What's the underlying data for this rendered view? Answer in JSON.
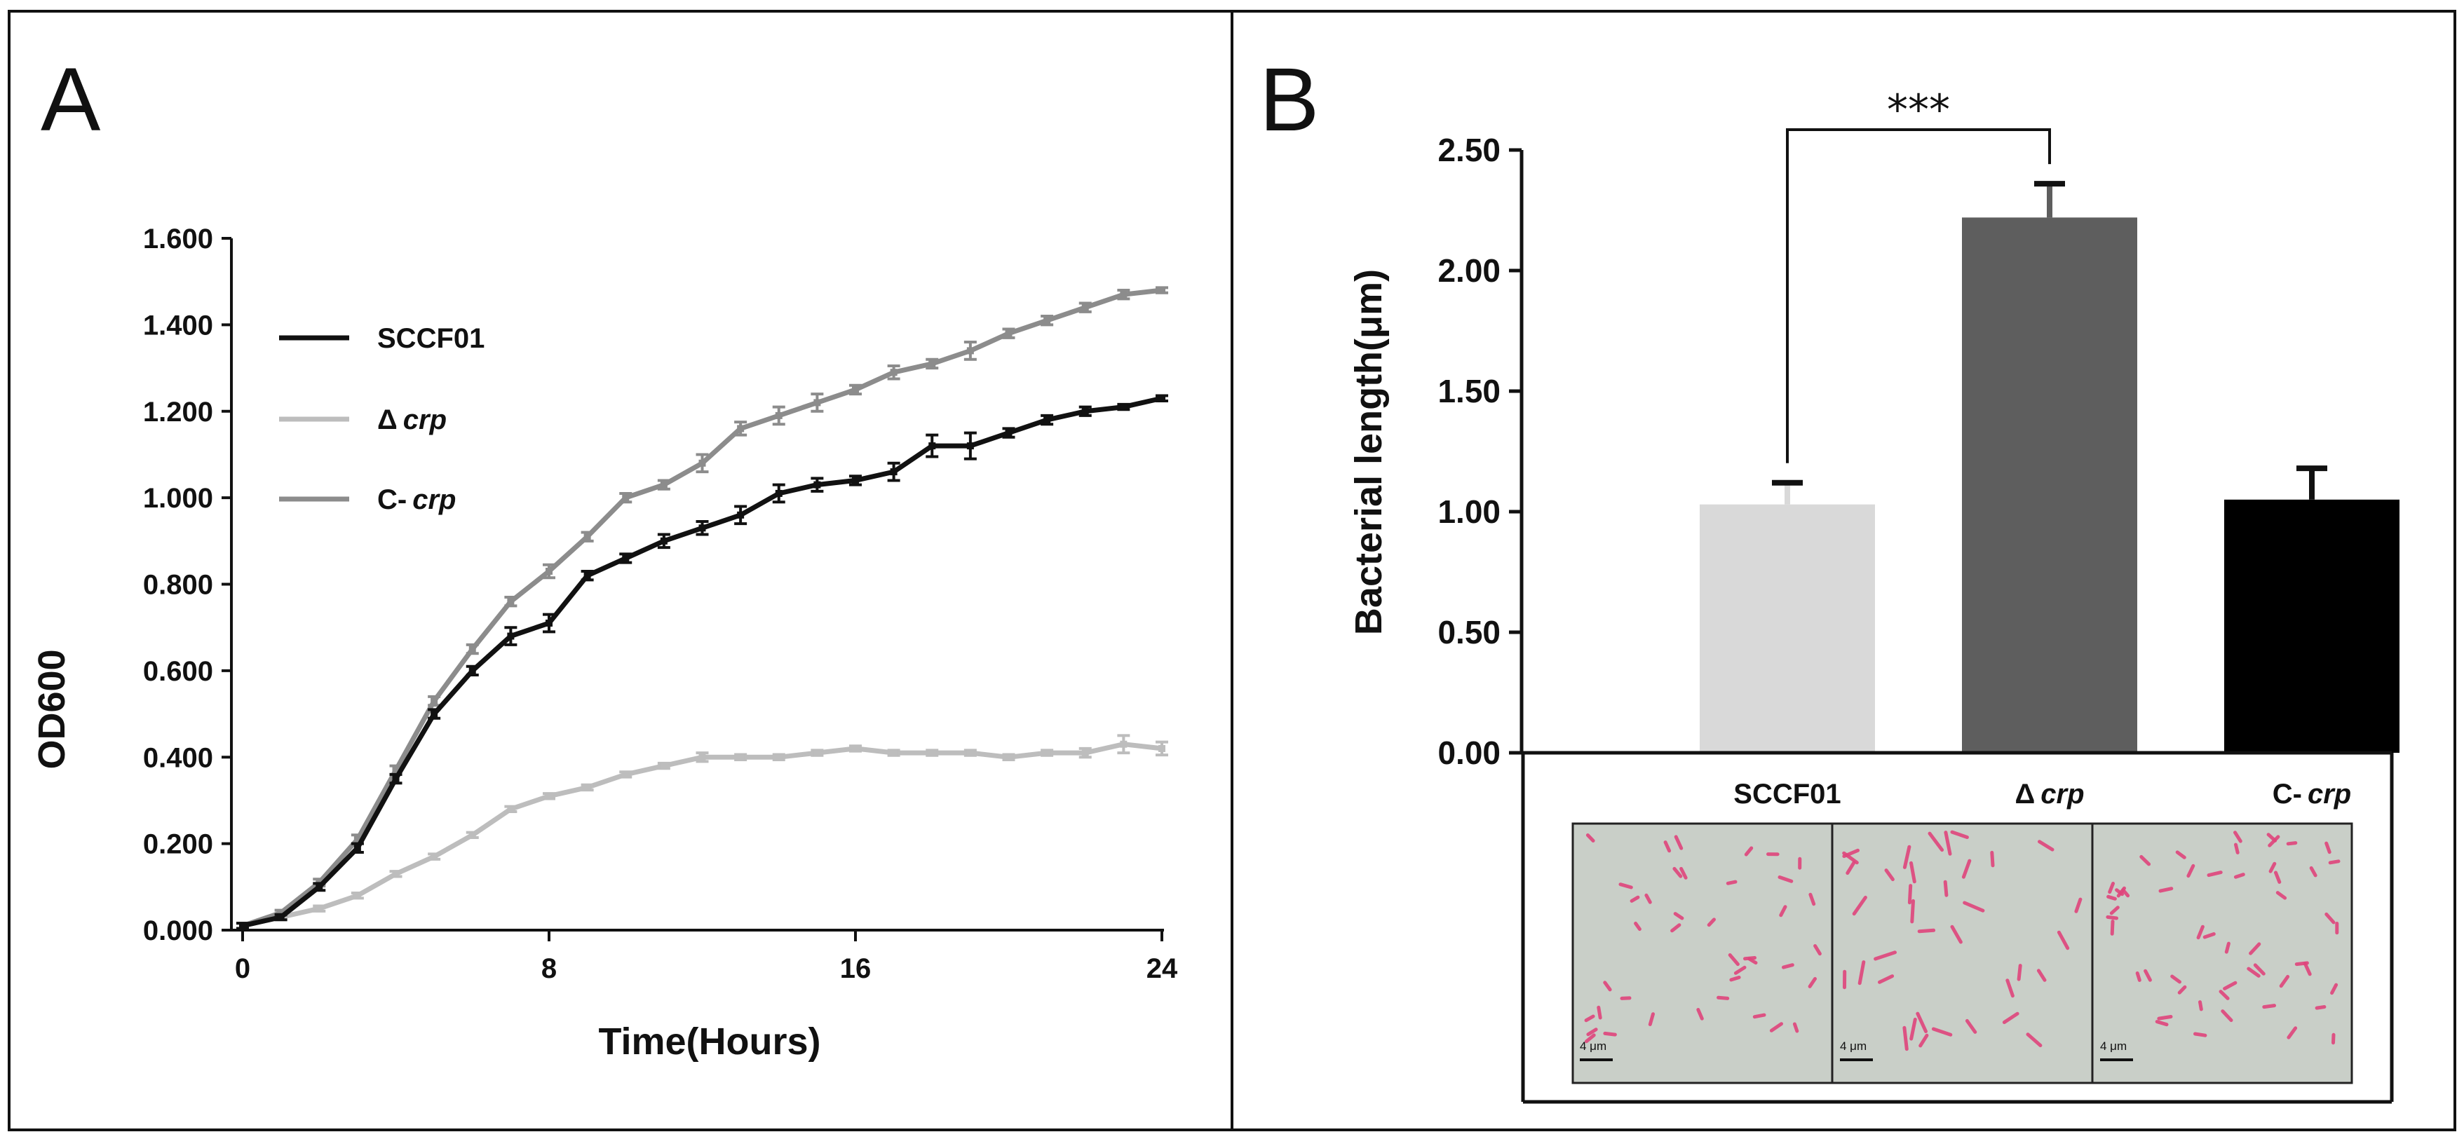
{
  "chart_data": [
    {
      "panel": "A",
      "type": "line",
      "xlabel": "Time(Hours)",
      "ylabel": "OD600",
      "xlim": [
        0,
        24
      ],
      "ylim": [
        0,
        1.6
      ],
      "xticks": [
        "0",
        "8",
        "16",
        "24"
      ],
      "yticks": [
        "0.000",
        "0.200",
        "0.400",
        "0.600",
        "0.800",
        "1.000",
        "1.200",
        "1.400",
        "1.600"
      ],
      "legend": [
        {
          "prefix": "SCCF01",
          "italic": ""
        },
        {
          "prefix": "Δ",
          "italic": "crp"
        },
        {
          "prefix": "C-",
          "italic": "crp"
        }
      ],
      "x": [
        0,
        1,
        2,
        3,
        4,
        5,
        6,
        7,
        8,
        9,
        10,
        11,
        12,
        13,
        14,
        15,
        16,
        17,
        18,
        19,
        20,
        21,
        22,
        23,
        24
      ],
      "series": [
        {
          "name": "SCCF01",
          "color": "#111111",
          "values": [
            0.01,
            0.03,
            0.1,
            0.19,
            0.35,
            0.5,
            0.6,
            0.68,
            0.71,
            0.82,
            0.86,
            0.9,
            0.93,
            0.96,
            1.01,
            1.03,
            1.04,
            1.06,
            1.12,
            1.12,
            1.15,
            1.18,
            1.2,
            1.21,
            1.23
          ],
          "errors": [
            0,
            0.005,
            0.008,
            0.01,
            0.01,
            0.01,
            0.01,
            0.02,
            0.02,
            0.01,
            0.01,
            0.015,
            0.015,
            0.02,
            0.02,
            0.015,
            0.01,
            0.02,
            0.025,
            0.03,
            0.01,
            0.01,
            0.01,
            0.005,
            0.005
          ]
        },
        {
          "name": "Δcrp",
          "color": "#bdbdbd",
          "values": [
            0.01,
            0.03,
            0.05,
            0.08,
            0.13,
            0.17,
            0.22,
            0.28,
            0.31,
            0.33,
            0.36,
            0.38,
            0.4,
            0.4,
            0.4,
            0.41,
            0.42,
            0.41,
            0.41,
            0.41,
            0.4,
            0.41,
            0.41,
            0.43,
            0.42
          ],
          "errors": [
            0,
            0.003,
            0.003,
            0.005,
            0.005,
            0.005,
            0.005,
            0.005,
            0.005,
            0.005,
            0.005,
            0.005,
            0.01,
            0.005,
            0.005,
            0.005,
            0.005,
            0.005,
            0.005,
            0.005,
            0.005,
            0.005,
            0.01,
            0.02,
            0.015
          ]
        },
        {
          "name": "C-crp",
          "color": "#8c8c8c",
          "values": [
            0.01,
            0.04,
            0.11,
            0.21,
            0.37,
            0.53,
            0.65,
            0.76,
            0.83,
            0.91,
            1.0,
            1.03,
            1.08,
            1.16,
            1.19,
            1.22,
            1.25,
            1.29,
            1.31,
            1.34,
            1.38,
            1.41,
            1.44,
            1.47,
            1.48
          ],
          "errors": [
            0,
            0.005,
            0.008,
            0.01,
            0.01,
            0.01,
            0.01,
            0.01,
            0.015,
            0.01,
            0.01,
            0.01,
            0.02,
            0.015,
            0.02,
            0.02,
            0.01,
            0.015,
            0.01,
            0.02,
            0.01,
            0.01,
            0.01,
            0.01,
            0.005
          ]
        }
      ]
    },
    {
      "panel": "B",
      "type": "bar",
      "ylabel": "Bacterial length(μm)",
      "ylim": [
        0,
        2.5
      ],
      "yticks": [
        "0.00",
        "0.50",
        "1.00",
        "1.50",
        "2.00",
        "2.50"
      ],
      "categories": [
        {
          "prefix": "SCCF01",
          "italic": ""
        },
        {
          "prefix": "Δ",
          "italic": "crp"
        },
        {
          "prefix": "C-",
          "italic": "crp"
        }
      ],
      "values": [
        1.03,
        2.22,
        1.05
      ],
      "errors": [
        0.09,
        0.14,
        0.13
      ],
      "colors": [
        "#d9d9d9",
        "#5e5e5e",
        "#000000"
      ],
      "significance": {
        "from": 0,
        "to": 1,
        "label": "***"
      },
      "scale_bar_label": "4 μm"
    }
  ]
}
